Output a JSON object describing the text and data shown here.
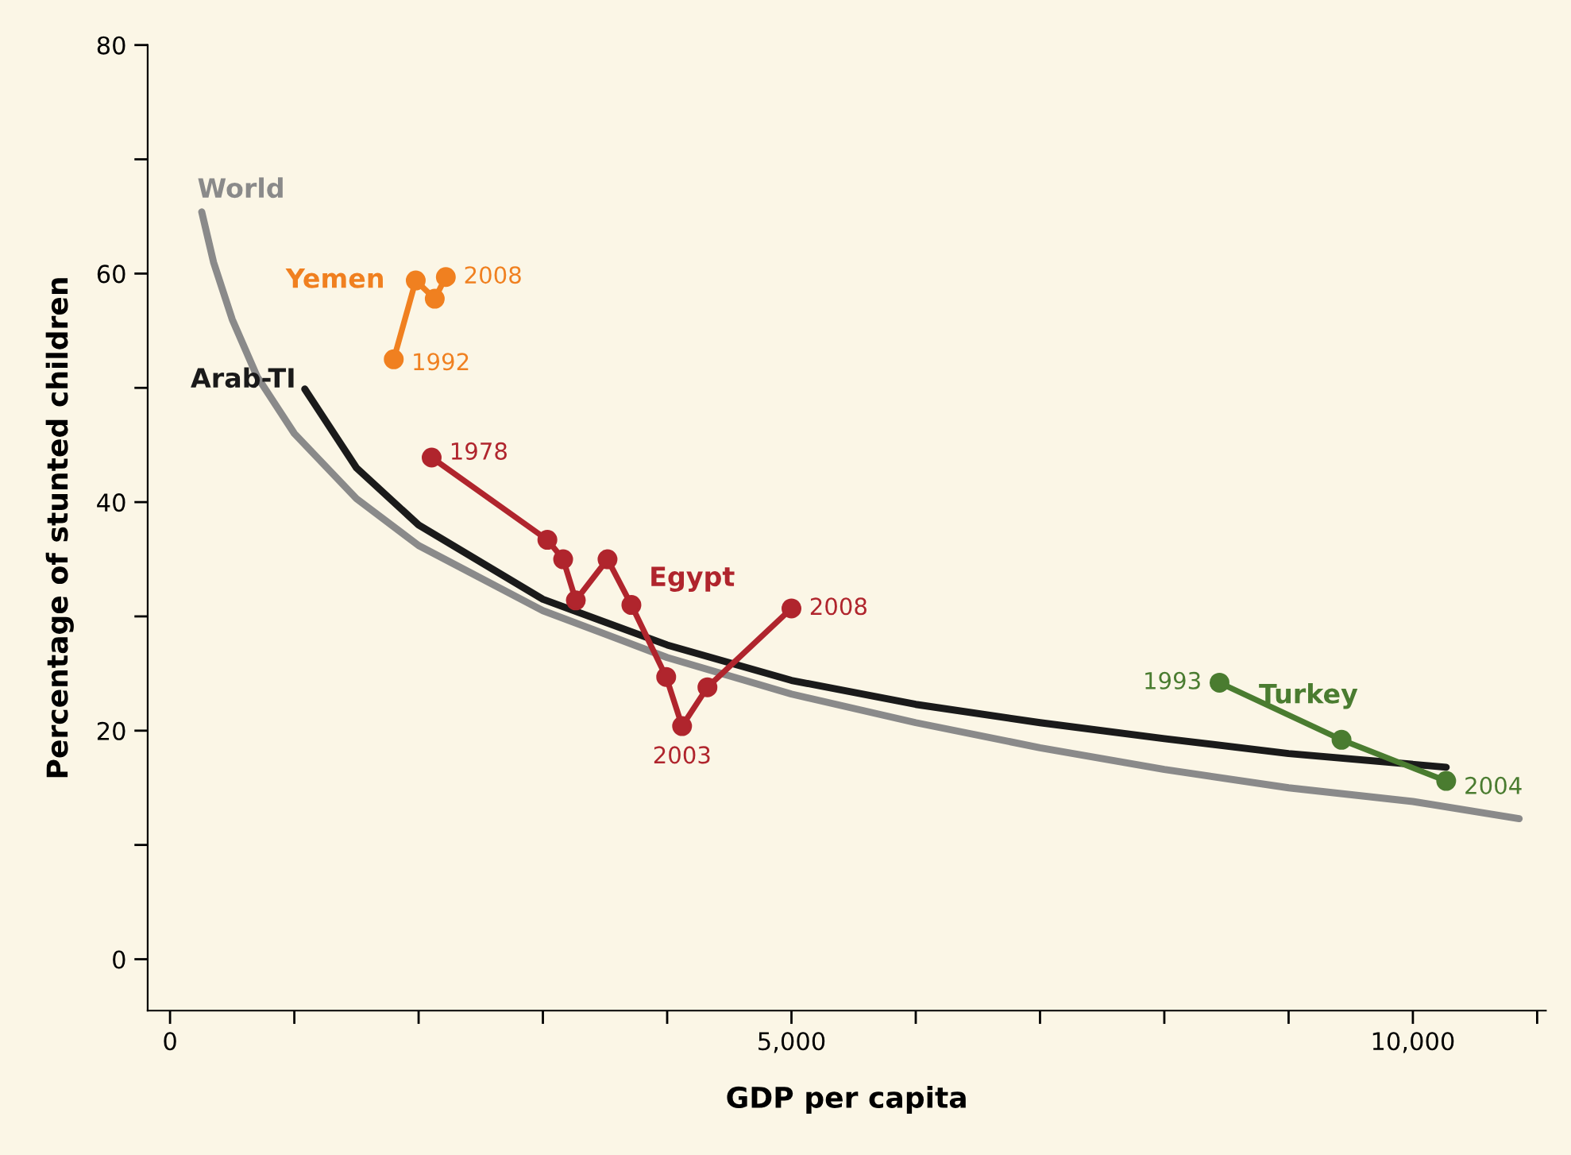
{
  "chart_data": {
    "type": "line",
    "xlabel": "GDP per capita",
    "ylabel": "Percentage of stunted children",
    "xlim": [
      -180,
      11070
    ],
    "ylim": [
      -4.5,
      80
    ],
    "xticks": [
      0,
      {
        "value": 1000,
        "label": null
      },
      {
        "value": 2000,
        "label": null
      },
      {
        "value": 3000,
        "label": null
      },
      {
        "value": 4000,
        "label": null
      },
      {
        "value": 5000,
        "label": "5,000"
      },
      {
        "value": 6000,
        "label": null
      },
      {
        "value": 7000,
        "label": null
      },
      {
        "value": 8000,
        "label": null
      },
      {
        "value": 9000,
        "label": null
      },
      {
        "value": 10000,
        "label": "10,000"
      },
      {
        "value": 11000,
        "label": null
      }
    ],
    "yticks": [
      0,
      {
        "value": 10,
        "label": null
      },
      20,
      {
        "value": 30,
        "label": null
      },
      40,
      {
        "value": 50,
        "label": null
      },
      60,
      {
        "value": 70,
        "label": null
      },
      80
    ],
    "grid": false,
    "legend": false,
    "line_style": "solid",
    "series": [
      {
        "name": "World",
        "color": "#8a8a8a",
        "marker": "none",
        "x": [
          255,
          350,
          500,
          700,
          1000,
          1500,
          2000,
          3000,
          4000,
          5000,
          6000,
          7000,
          8000,
          9000,
          10000,
          10855
        ],
        "values": [
          65.4,
          61,
          56,
          51,
          46,
          40.3,
          36.2,
          30.5,
          26.4,
          23.2,
          20.7,
          18.5,
          16.6,
          15,
          13.8,
          12.3
        ]
      },
      {
        "name": "Arab-TI",
        "color": "#1a1a1a",
        "marker": "none",
        "x": [
          1084,
          1500,
          2000,
          3000,
          4000,
          5000,
          6000,
          7000,
          8000,
          9000,
          10268
        ],
        "values": [
          49.9,
          43,
          38,
          31.5,
          27.5,
          24.4,
          22.3,
          20.7,
          19.3,
          18,
          16.8
        ]
      },
      {
        "name": "Yemen",
        "color": "#f08020",
        "marker": "circle",
        "x": [
          1800,
          1977,
          2130,
          2219
        ],
        "values": [
          52.5,
          59.4,
          57.8,
          59.7
        ]
      },
      {
        "name": "Egypt",
        "color": "#b0252d",
        "marker": "circle",
        "x": [
          2105,
          3036,
          3163,
          3265,
          3520,
          3712,
          3992,
          4120,
          4324,
          5000
        ],
        "values": [
          43.9,
          36.7,
          35.0,
          31.4,
          35.0,
          31.0,
          24.7,
          20.4,
          23.8,
          30.7
        ]
      },
      {
        "name": "Turkey",
        "color": "#4a7c30",
        "marker": "circle",
        "x": [
          8444,
          9426,
          10268
        ],
        "values": [
          24.2,
          19.2,
          15.6
        ]
      }
    ],
    "annotations": [
      {
        "text": "1992",
        "x": 1800,
        "y": 52.5
      },
      {
        "text": "2008",
        "x": 2219,
        "y": 59.7
      },
      {
        "text": "1978",
        "x": 2105,
        "y": 43.9
      },
      {
        "text": "2008",
        "x": 5000,
        "y": 30.7
      },
      {
        "text": "2003",
        "x": 4120,
        "y": 20.4
      },
      {
        "text": "1993",
        "x": 8444,
        "y": 24.2
      },
      {
        "text": "2004",
        "x": 10268,
        "y": 15.6
      }
    ]
  }
}
